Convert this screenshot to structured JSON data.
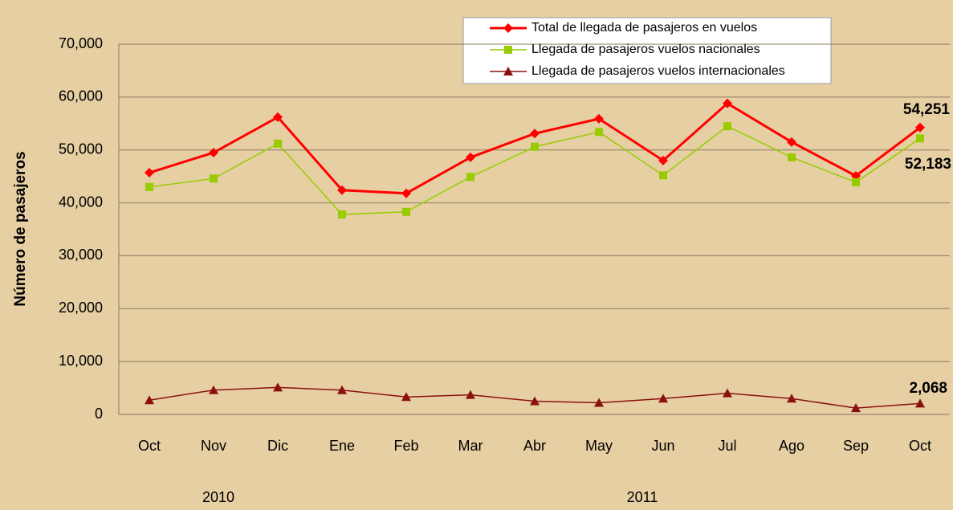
{
  "chart_data": {
    "type": "line",
    "y_label": "Número de pasajeros",
    "categories": [
      "Oct",
      "Nov",
      "Dic",
      "Ene",
      "Feb",
      "Mar",
      "Abr",
      "May",
      "Jun",
      "Jul",
      "Ago",
      "Sep",
      "Oct"
    ],
    "year_labels": [
      "2010",
      "2011"
    ],
    "ylim": [
      0,
      70000
    ],
    "yticks": [
      0,
      {
        "value": 10000,
        "label": "10,000"
      },
      {
        "value": 20000,
        "label": "20,000"
      },
      {
        "value": 30000,
        "label": "30,000"
      },
      {
        "value": 40000,
        "label": "40,000"
      },
      {
        "value": 50000,
        "label": "50,000"
      },
      {
        "value": 60000,
        "label": "60,000"
      },
      {
        "value": 70000,
        "label": "70,000"
      }
    ],
    "grid": true,
    "legend": "top",
    "series": [
      {
        "name": "Total de llegada de pasajeros en vuelos",
        "color": "#ff0000",
        "marker": "diamond",
        "values": [
          45700,
          49500,
          56200,
          42400,
          41800,
          48600,
          53100,
          55900,
          48000,
          58800,
          51500,
          45100,
          54251
        ],
        "value_labels": [
          null,
          null,
          null,
          null,
          null,
          null,
          null,
          null,
          null,
          null,
          null,
          null,
          "54,251"
        ]
      },
      {
        "name": "Llegada de pasajeros vuelos nacionales",
        "color": "#99cc00",
        "marker": "square",
        "values": [
          43000,
          44600,
          51200,
          37800,
          38300,
          44900,
          50600,
          53400,
          45200,
          54500,
          48600,
          43900,
          52183
        ],
        "value_labels": [
          null,
          null,
          null,
          null,
          null,
          null,
          null,
          null,
          null,
          null,
          null,
          null,
          "52,183"
        ]
      },
      {
        "name": "Llegada de pasajeros vuelos internacionales",
        "color": "#8b1010",
        "marker": "triangle",
        "values": [
          2700,
          4600,
          5100,
          4600,
          3300,
          3700,
          2500,
          2200,
          3000,
          4000,
          3000,
          1200,
          2068
        ],
        "value_labels": [
          null,
          null,
          null,
          null,
          null,
          null,
          null,
          null,
          null,
          null,
          null,
          null,
          "2,068"
        ]
      }
    ]
  }
}
